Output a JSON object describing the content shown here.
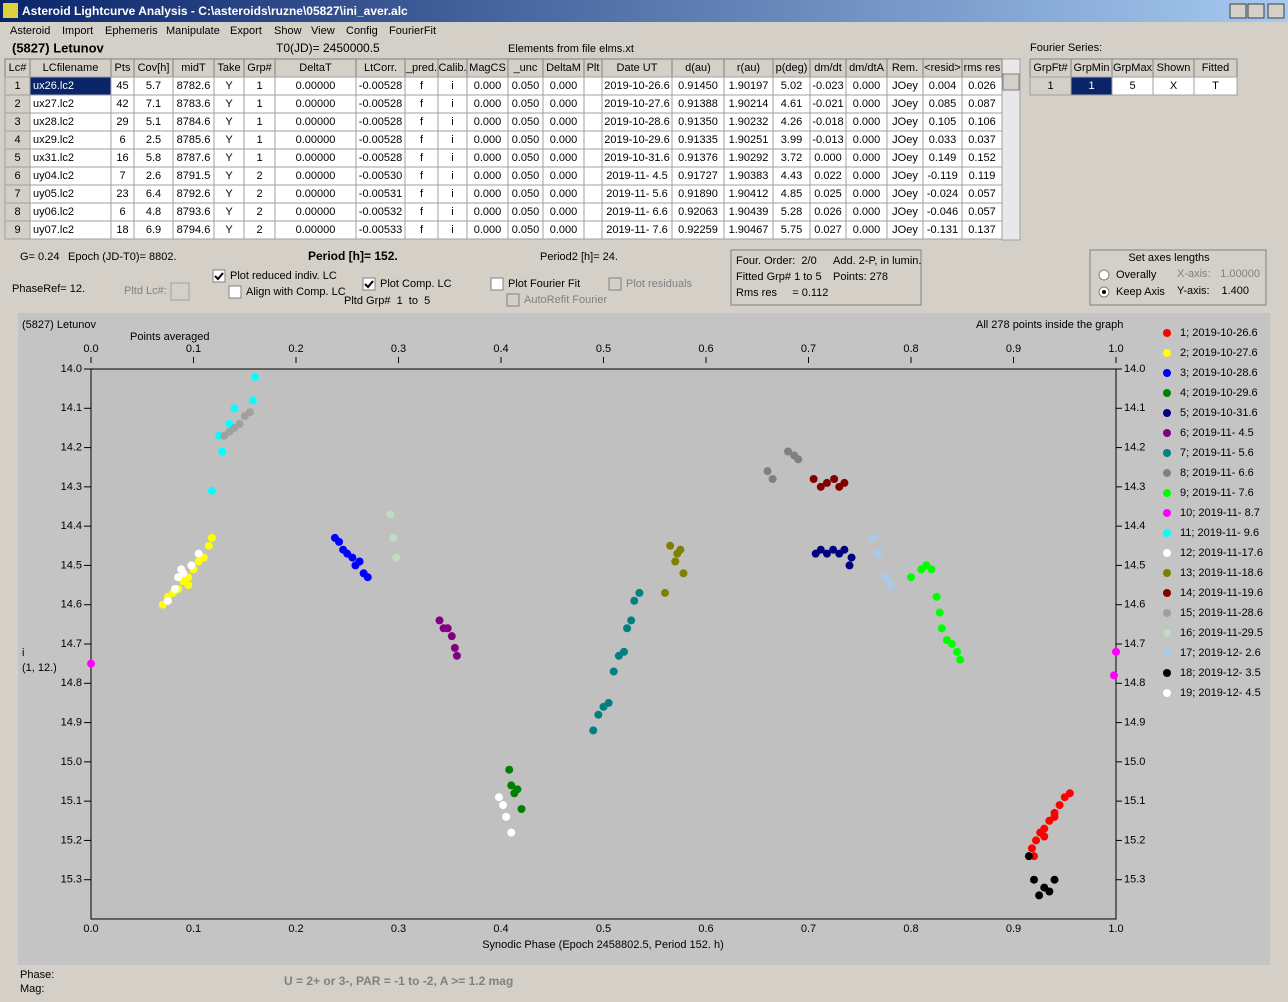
{
  "window": {
    "title": "Asteroid Lightcurve Analysis - C:\\asteroids\\ruzne\\05827\\ini_aver.alc",
    "menu": [
      "Asteroid",
      "Import",
      "Ephemeris",
      "Manipulate",
      "Export",
      "Show",
      "View",
      "Config",
      "FourierFit"
    ]
  },
  "header": {
    "object": "(5827) Letunov",
    "t0": "T0(JD)= 2450000.5",
    "elements": "Elements from file elms.xt",
    "fourier_label": "Fourier Series:"
  },
  "table": {
    "columns": [
      "Lc#",
      "LCfilename",
      "Pts",
      "Cov[h]",
      "midT",
      "Take",
      "Grp#",
      "DeltaT",
      "LtCorr.",
      "_pred.",
      "Calib.",
      "MagCS",
      "_unc",
      "DeltaM",
      "Plt",
      "Date UT",
      "d(au)",
      "r(au)",
      "p(deg)",
      "dm/dt",
      "dm/dtA",
      "Rem.",
      "<resid>",
      "rms res"
    ],
    "rows": [
      [
        "1",
        "ux26.lc2",
        "45",
        "5.7",
        "8782.6",
        "Y",
        "1",
        "0.00000",
        "-0.00528",
        "f",
        "i",
        "0.000",
        "0.050",
        "0.000",
        "2019-10-26.6",
        "0.91450",
        "1.90197",
        "5.02",
        "-0.023",
        "0.000",
        "JOey",
        "0.004",
        "0.026"
      ],
      [
        "2",
        "ux27.lc2",
        "42",
        "7.1",
        "8783.6",
        "Y",
        "1",
        "0.00000",
        "-0.00528",
        "f",
        "i",
        "0.000",
        "0.050",
        "0.000",
        "2019-10-27.6",
        "0.91388",
        "1.90214",
        "4.61",
        "-0.021",
        "0.000",
        "JOey",
        "0.085",
        "0.087"
      ],
      [
        "3",
        "ux28.lc2",
        "29",
        "5.1",
        "8784.6",
        "Y",
        "1",
        "0.00000",
        "-0.00528",
        "f",
        "i",
        "0.000",
        "0.050",
        "0.000",
        "2019-10-28.6",
        "0.91350",
        "1.90232",
        "4.26",
        "-0.018",
        "0.000",
        "JOey",
        "0.105",
        "0.106"
      ],
      [
        "4",
        "ux29.lc2",
        "6",
        "2.5",
        "8785.6",
        "Y",
        "1",
        "0.00000",
        "-0.00528",
        "f",
        "i",
        "0.000",
        "0.050",
        "0.000",
        "2019-10-29.6",
        "0.91335",
        "1.90251",
        "3.99",
        "-0.013",
        "0.000",
        "JOey",
        "0.033",
        "0.037"
      ],
      [
        "5",
        "ux31.lc2",
        "16",
        "5.8",
        "8787.6",
        "Y",
        "1",
        "0.00000",
        "-0.00528",
        "f",
        "i",
        "0.000",
        "0.050",
        "0.000",
        "2019-10-31.6",
        "0.91376",
        "1.90292",
        "3.72",
        "0.000",
        "0.000",
        "JOey",
        "0.149",
        "0.152"
      ],
      [
        "6",
        "uy04.lc2",
        "7",
        "2.6",
        "8791.5",
        "Y",
        "2",
        "0.00000",
        "-0.00530",
        "f",
        "i",
        "0.000",
        "0.050",
        "0.000",
        "2019-11- 4.5",
        "0.91727",
        "1.90383",
        "4.43",
        "0.022",
        "0.000",
        "JOey",
        "-0.119",
        "0.119"
      ],
      [
        "7",
        "uy05.lc2",
        "23",
        "6.4",
        "8792.6",
        "Y",
        "2",
        "0.00000",
        "-0.00531",
        "f",
        "i",
        "0.000",
        "0.050",
        "0.000",
        "2019-11- 5.6",
        "0.91890",
        "1.90412",
        "4.85",
        "0.025",
        "0.000",
        "JOey",
        "-0.024",
        "0.057"
      ],
      [
        "8",
        "uy06.lc2",
        "6",
        "4.8",
        "8793.6",
        "Y",
        "2",
        "0.00000",
        "-0.00532",
        "f",
        "i",
        "0.000",
        "0.050",
        "0.000",
        "2019-11- 6.6",
        "0.92063",
        "1.90439",
        "5.28",
        "0.026",
        "0.000",
        "JOey",
        "-0.046",
        "0.057"
      ],
      [
        "9",
        "uy07.lc2",
        "18",
        "6.9",
        "8794.6",
        "Y",
        "2",
        "0.00000",
        "-0.00533",
        "f",
        "i",
        "0.000",
        "0.050",
        "0.000",
        "2019-11- 7.6",
        "0.92259",
        "1.90467",
        "5.75",
        "0.027",
        "0.000",
        "JOey",
        "-0.131",
        "0.137"
      ]
    ]
  },
  "fourier_table": {
    "columns": [
      "GrpFt#",
      "GrpMin",
      "GrpMax",
      "Shown",
      "Fitted"
    ],
    "rows": [
      [
        "1",
        "1",
        "5",
        "X",
        "T"
      ]
    ]
  },
  "controls": {
    "g": "G= 0.24",
    "epoch": "Epoch (JD-T0)= 8802.",
    "period": "Period [h]= 152.",
    "period2": "Period2 [h]= 24.",
    "phaseref": "PhaseRef= 12.",
    "pltd_lc": "Pltd Lc#:",
    "plot_reduced": "Plot reduced indiv. LC",
    "align": "Align with Comp. LC",
    "plot_comp": "Plot Comp. LC",
    "pltd_grp": "Pltd Grp#  1  to  5",
    "plot_fourier": "Plot Fourier Fit",
    "plot_residuals": "Plot residuals",
    "autorefit": "AutoRefit Fourier"
  },
  "info": {
    "order": "Four. Order:  2/0",
    "add": "Add. 2-P, in lumin.",
    "fitted": "Fitted Grp# 1 to 5",
    "points": "Points: 278",
    "rms": "Rms res     = 0.112"
  },
  "axes_box": {
    "title": "Set axes lengths",
    "overally": "Overally",
    "keep": "Keep Axis",
    "x_label": "X-axis:",
    "x_value": "1.00000",
    "y_label": "Y-axis:",
    "y_value": "1.400"
  },
  "status": {
    "phase": "Phase:",
    "mag": "Mag:",
    "note": "U = 2+ or 3-, PAR = -1 to -2, A >= 1.2 mag"
  },
  "chart_data": {
    "type": "scatter",
    "title": "(5827) Letunov",
    "annotations": [
      "Points averaged",
      "All 278 points inside the graph"
    ],
    "x_label": "Synodic Phase (Epoch 2458802.5, Period 152. h)",
    "y_label": "i",
    "y_label_2": "(1, 12.)",
    "xlim": [
      0,
      1
    ],
    "ylim": [
      14.0,
      15.4
    ],
    "y_inverted": true,
    "legend": "right",
    "xticks": [
      {
        "value": 0,
        "label": "0.0"
      },
      0.1,
      0.2,
      0.3,
      0.4,
      0.5,
      0.6,
      0.7,
      0.8,
      0.9,
      {
        "value": 1,
        "label": "1.0"
      }
    ],
    "yticks": [
      {
        "value": 14,
        "label": "14.0"
      },
      14.1,
      14.2,
      14.3,
      14.4,
      14.5,
      14.6,
      14.7,
      14.8,
      14.9,
      {
        "value": 15,
        "label": "15.0"
      },
      15.1,
      15.2,
      15.3
    ],
    "series": [
      {
        "name": "1; 2019-10-26.6",
        "color": "#ff0000",
        "x": [
          0.918,
          0.922,
          0.926,
          0.93,
          0.935,
          0.94,
          0.945,
          0.95,
          0.955,
          0.92,
          0.93,
          0.94
        ],
        "values": [
          15.22,
          15.2,
          15.18,
          15.17,
          15.15,
          15.13,
          15.11,
          15.09,
          15.08,
          15.24,
          15.19,
          15.14
        ]
      },
      {
        "name": "2; 2019-10-27.6",
        "color": "#ffff00",
        "x": [
          0.07,
          0.075,
          0.08,
          0.085,
          0.09,
          0.095,
          0.1,
          0.105,
          0.11,
          0.115,
          0.118,
          0.095
        ],
        "values": [
          14.6,
          14.58,
          14.57,
          14.56,
          14.54,
          14.53,
          14.51,
          14.49,
          14.48,
          14.45,
          14.43,
          14.55
        ]
      },
      {
        "name": "3; 2019-10-28.6",
        "color": "#0000ff",
        "x": [
          0.238,
          0.242,
          0.246,
          0.25,
          0.255,
          0.258,
          0.262,
          0.266,
          0.27
        ],
        "values": [
          14.43,
          14.44,
          14.46,
          14.47,
          14.48,
          14.5,
          14.49,
          14.52,
          14.53
        ]
      },
      {
        "name": "4; 2019-10-29.6",
        "color": "#008000",
        "x": [
          0.408,
          0.41,
          0.413,
          0.416,
          0.42
        ],
        "values": [
          15.02,
          15.06,
          15.08,
          15.07,
          15.12
        ]
      },
      {
        "name": "5; 2019-10-31.6",
        "color": "#000080",
        "x": [
          0.707,
          0.712,
          0.718,
          0.724,
          0.73,
          0.735,
          0.74,
          0.742
        ],
        "values": [
          14.47,
          14.46,
          14.47,
          14.46,
          14.47,
          14.46,
          14.5,
          14.48
        ]
      },
      {
        "name": "6; 2019-11- 4.5",
        "color": "#800080",
        "x": [
          0.34,
          0.344,
          0.348,
          0.352,
          0.355,
          0.357
        ],
        "values": [
          14.64,
          14.66,
          14.66,
          14.68,
          14.71,
          14.73
        ]
      },
      {
        "name": "7; 2019-11- 5.6",
        "color": "#008080",
        "x": [
          0.49,
          0.495,
          0.5,
          0.505,
          0.51,
          0.515,
          0.52,
          0.523,
          0.527,
          0.53,
          0.535
        ],
        "values": [
          14.92,
          14.88,
          14.86,
          14.85,
          14.77,
          14.73,
          14.72,
          14.66,
          14.64,
          14.59,
          14.57
        ]
      },
      {
        "name": "8; 2019-11- 6.6",
        "color": "#808080",
        "x": [
          0.66,
          0.665,
          0.68,
          0.686,
          0.69
        ],
        "values": [
          14.26,
          14.28,
          14.21,
          14.22,
          14.23
        ]
      },
      {
        "name": "9; 2019-11- 7.6",
        "color": "#00ff00",
        "x": [
          0.8,
          0.81,
          0.815,
          0.82,
          0.825,
          0.828,
          0.83,
          0.835,
          0.84,
          0.845,
          0.848
        ],
        "values": [
          14.53,
          14.51,
          14.5,
          14.51,
          14.58,
          14.62,
          14.66,
          14.69,
          14.7,
          14.72,
          14.74
        ]
      },
      {
        "name": "10; 2019-11- 8.7",
        "color": "#ff00ff",
        "x": [
          0.0,
          0.998,
          1.0
        ],
        "values": [
          14.75,
          14.78,
          14.72
        ]
      },
      {
        "name": "11; 2019-11- 9.6",
        "color": "#00ffff",
        "x": [
          0.118,
          0.125,
          0.128,
          0.135,
          0.14,
          0.158,
          0.16
        ],
        "values": [
          14.31,
          14.17,
          14.21,
          14.14,
          14.1,
          14.08,
          14.02
        ]
      },
      {
        "name": "12; 2019-11-17.6",
        "color": "#ffffff",
        "x": [
          0.075,
          0.082,
          0.09,
          0.098,
          0.105,
          0.398,
          0.402,
          0.405,
          0.41
        ],
        "values": [
          14.59,
          14.56,
          14.52,
          14.5,
          14.47,
          15.09,
          15.11,
          15.14,
          15.18
        ]
      },
      {
        "name": "13; 2019-11-18.6",
        "color": "#808000",
        "x": [
          0.56,
          0.565,
          0.572,
          0.575,
          0.578,
          0.57
        ],
        "values": [
          14.57,
          14.45,
          14.47,
          14.46,
          14.52,
          14.49
        ]
      },
      {
        "name": "14; 2019-11-19.6",
        "color": "#800000",
        "x": [
          0.705,
          0.712,
          0.718,
          0.725,
          0.73,
          0.735
        ],
        "values": [
          14.28,
          14.3,
          14.29,
          14.28,
          14.3,
          14.29
        ]
      },
      {
        "name": "15; 2019-11-28.6",
        "color": "#a0a0a0",
        "x": [
          0.13,
          0.135,
          0.14,
          0.145,
          0.15,
          0.155
        ],
        "values": [
          14.17,
          14.16,
          14.15,
          14.14,
          14.12,
          14.11
        ]
      },
      {
        "name": "16; 2019-11-29.5",
        "color": "#c0dcc0",
        "x": [
          0.292,
          0.295,
          0.298
        ],
        "values": [
          14.37,
          14.43,
          14.48
        ]
      },
      {
        "name": "17; 2019-12- 2.6",
        "color": "#a6caf0",
        "x": [
          0.763,
          0.768,
          0.775,
          0.78
        ],
        "values": [
          14.43,
          14.47,
          14.53,
          14.55
        ]
      },
      {
        "name": "18; 2019-12- 3.5",
        "color": "#000000",
        "x": [
          0.915,
          0.92,
          0.925,
          0.93,
          0.935,
          0.94
        ],
        "values": [
          15.24,
          15.3,
          15.34,
          15.32,
          15.33,
          15.3
        ]
      },
      {
        "name": "19; 2019-12- 4.5",
        "color": "#ffffff",
        "x": [
          0.085,
          0.088
        ],
        "values": [
          14.53,
          14.51
        ]
      }
    ]
  }
}
